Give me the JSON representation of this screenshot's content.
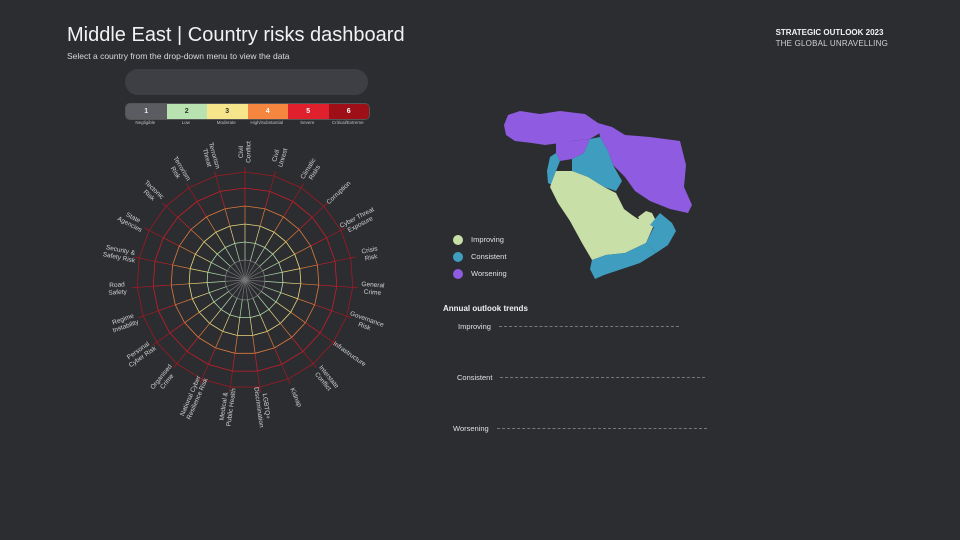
{
  "header": {
    "title": "Middle East | Country risks dashboard",
    "subtitle": "Select a country from the drop-down menu to view the data",
    "brand_line1": "STRATEGIC OUTLOOK 2023",
    "brand_line2": "THE GLOBAL UNRAVELLING"
  },
  "dropdown": {
    "value": ""
  },
  "scale": {
    "levels": [
      {
        "num": "1",
        "label": "Negligible",
        "color": "#5a5c61",
        "text": "#e8e8e8"
      },
      {
        "num": "2",
        "label": "Low",
        "color": "#b8e2b0",
        "text": "#333333"
      },
      {
        "num": "3",
        "label": "Moderate",
        "color": "#f6e58a",
        "text": "#333333"
      },
      {
        "num": "4",
        "label": "High/Substantial",
        "color": "#f4863f",
        "text": "#ffffff"
      },
      {
        "num": "5",
        "label": "Severe",
        "color": "#e0202c",
        "text": "#ffffff"
      },
      {
        "num": "6",
        "label": "Critical/Extreme",
        "color": "#9e0f17",
        "text": "#ffffff"
      }
    ]
  },
  "radar": {
    "ring_colors": [
      "#777777",
      "#b0d8a8",
      "#e9d97c",
      "#e07a3c",
      "#c81e28",
      "#9e1a22"
    ],
    "categories": [
      [
        "Civil",
        "Conflict"
      ],
      [
        "Civil",
        "Unrest"
      ],
      [
        "Climatic",
        "Risks"
      ],
      [
        "Corruption"
      ],
      [
        "Cyber Threat",
        "Exposure"
      ],
      [
        "Crisis",
        "Risk"
      ],
      [
        "General",
        "Crime"
      ],
      [
        "Governance",
        "Risk"
      ],
      [
        "Infrastructure"
      ],
      [
        "Interstate",
        "Conflict"
      ],
      [
        "Kidnap"
      ],
      [
        "LGBTQ+",
        "Discrimination"
      ],
      [
        "Medical &",
        "Public Health"
      ],
      [
        "National Cyber",
        "Resilience Risk"
      ],
      [
        "Organised",
        "Crime"
      ],
      [
        "Personal",
        "Cyber Risk"
      ],
      [
        "Regime",
        "Instability"
      ],
      [
        "Road",
        "Safety"
      ],
      [
        "Security &",
        "Safety Risk"
      ],
      [
        "State",
        "Agencies"
      ],
      [
        "Tectonic",
        "Risk"
      ],
      [
        "Terrorism",
        "Risk"
      ],
      [
        "Terrorism",
        "Threat"
      ]
    ]
  },
  "map": {
    "colors": {
      "improving": "#c9dfa8",
      "consistent": "#3f9ec0",
      "worsening": "#8f5be0"
    }
  },
  "legend": {
    "items": [
      {
        "label": "Improving",
        "color": "#c9dfa8"
      },
      {
        "label": "Consistent",
        "color": "#3f9ec0"
      },
      {
        "label": "Worsening",
        "color": "#8f5be0"
      }
    ]
  },
  "trends": {
    "title": "Annual outlook trends",
    "rows": [
      "Improving",
      "Consistent",
      "Worsening"
    ]
  }
}
